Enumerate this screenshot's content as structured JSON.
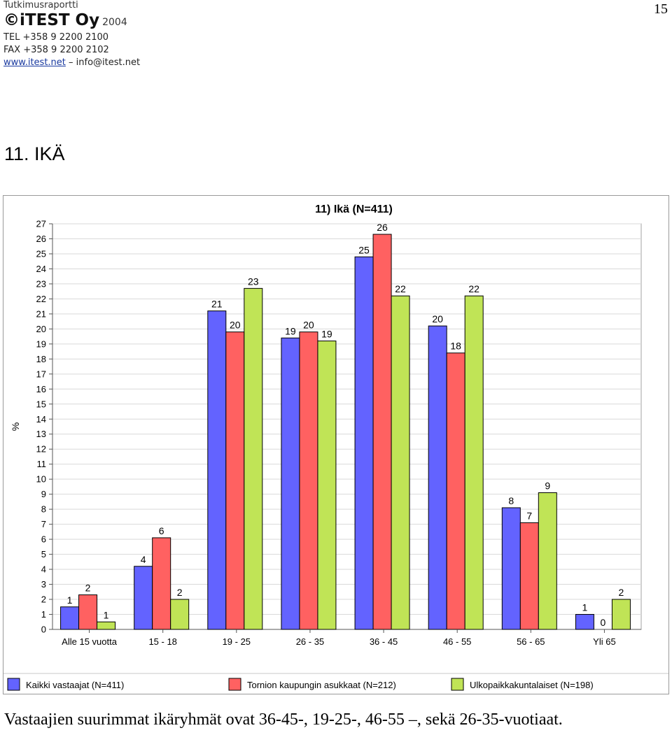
{
  "header": {
    "report_label": "Tutkimusraportti",
    "brand": "©iTEST Oy",
    "year": "2004",
    "tel": "TEL +358 9 2200 2100",
    "fax": "FAX +358 9 2200 2102",
    "website": "www.itest.net",
    "separator": "–",
    "email": "info@itest.net"
  },
  "page_number": "15",
  "section_title": "11. IKÄ",
  "caption": "Vastaajien suurimmat ikäryhmät ovat 36-45-, 19-25-,  46-55 –, sekä 26-35-vuotiaat.",
  "colors": {
    "series_1": "#6363ff",
    "series_2": "#ff6161",
    "series_3": "#c0e456",
    "grid": "#d9d9d9",
    "axis": "#555555"
  },
  "chart_data": {
    "type": "bar",
    "title": "11) Ikä (N=411)",
    "ylabel": "%",
    "xlabel": "",
    "categories": [
      "Alle 15 vuotta",
      "15 - 18",
      "19 - 25",
      "26 - 35",
      "36 - 45",
      "46 - 55",
      "56 - 65",
      "Yli 65"
    ],
    "series": [
      {
        "name": "Kaikki vastaajat (N=411)",
        "values": [
          1.5,
          4.2,
          21.2,
          19.4,
          24.8,
          20.2,
          8.1,
          1.0
        ],
        "labels": [
          "1",
          "4",
          "21",
          "19",
          "25",
          "20",
          "8",
          "1"
        ]
      },
      {
        "name": "Tornion kaupungin asukkaat (N=212)",
        "values": [
          2.3,
          6.1,
          19.8,
          19.8,
          26.3,
          18.4,
          7.1,
          0.0
        ],
        "labels": [
          "2",
          "6",
          "20",
          "20",
          "26",
          "18",
          "7",
          "0"
        ]
      },
      {
        "name": "Ulkopaikkakuntalaiset (N=198)",
        "values": [
          0.5,
          2.0,
          22.7,
          19.2,
          22.2,
          22.2,
          9.1,
          2.0
        ],
        "labels": [
          "1",
          "2",
          "23",
          "19",
          "22",
          "22",
          "9",
          "2"
        ]
      }
    ],
    "ylim": [
      0,
      27
    ],
    "yticks": [
      "0",
      "1",
      "2",
      "3",
      "4",
      "5",
      "6",
      "7",
      "8",
      "9",
      "10",
      "11",
      "12",
      "13",
      "14",
      "15",
      "16",
      "17",
      "18",
      "19",
      "20",
      "21",
      "22",
      "23",
      "24",
      "25",
      "26",
      "27"
    ],
    "grid": true,
    "legend_position": "bottom"
  }
}
